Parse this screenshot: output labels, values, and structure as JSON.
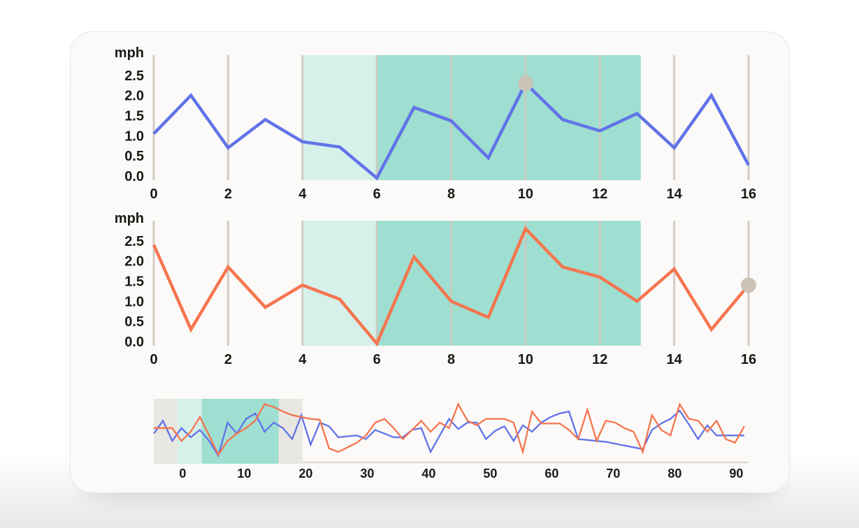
{
  "unit_label": "mph",
  "colors": {
    "series_blue": "#6173e8",
    "series_orange": "#f5754f",
    "highlight_light": "#d6f0ea",
    "highlight_dark": "#9edfd1",
    "brush_backdrop": "#e9e7e1",
    "gridline": "#cfc9be",
    "axis_line": "#dfdad2",
    "marker": "#cbc4b6",
    "text": "#1a1916",
    "card_background": "#fbfaf8"
  },
  "chart_data": [
    {
      "id": "speed-chart-1",
      "type": "line",
      "title": "",
      "ylabel": "mph",
      "xlim": [
        0,
        16
      ],
      "ylim": [
        -0.1,
        3.0
      ],
      "grid": "vertical",
      "legend_position": "none",
      "xticks": [
        0,
        2,
        4,
        6,
        8,
        10,
        12,
        14,
        16
      ],
      "yticks": [
        0,
        0.5,
        1,
        1.5,
        2,
        2.5
      ],
      "series": [
        {
          "name": "speed-blue",
          "color": "#6173e8",
          "x": {
            "start": 0,
            "step": 1
          },
          "values": [
            1.05,
            2.0,
            0.7,
            1.4,
            0.85,
            0.72,
            -0.05,
            1.7,
            1.37,
            0.45,
            2.3,
            1.4,
            1.12,
            1.55,
            0.7,
            2.0,
            0.27
          ]
        }
      ],
      "highlights": [
        {
          "name": "selection-light",
          "from": 4,
          "to": 6,
          "color": "#d6f0ea"
        },
        {
          "name": "selection-dark",
          "from": 6,
          "to": 13.1,
          "color": "#9edfd1"
        }
      ],
      "marker": {
        "x": 10,
        "y": 2.3,
        "color": "#cbc4b6"
      }
    },
    {
      "id": "speed-chart-2",
      "type": "line",
      "title": "",
      "ylabel": "mph",
      "xlim": [
        0,
        16
      ],
      "ylim": [
        -0.1,
        3.0
      ],
      "grid": "vertical",
      "legend_position": "none",
      "xticks": [
        0,
        2,
        4,
        6,
        8,
        10,
        12,
        14,
        16
      ],
      "yticks": [
        0,
        0.5,
        1,
        1.5,
        2,
        2.5
      ],
      "series": [
        {
          "name": "speed-orange",
          "color": "#f5754f",
          "x": {
            "start": 0,
            "step": 1
          },
          "values": [
            2.4,
            0.3,
            1.85,
            0.85,
            1.4,
            1.05,
            -0.05,
            2.1,
            1.0,
            0.6,
            2.8,
            1.85,
            1.6,
            1.0,
            1.8,
            0.3,
            1.4
          ]
        }
      ],
      "highlights": [
        {
          "name": "selection-light",
          "from": 4,
          "to": 6,
          "color": "#d6f0ea"
        },
        {
          "name": "selection-dark",
          "from": 6,
          "to": 13.1,
          "color": "#9edfd1"
        }
      ],
      "marker": {
        "x": 16,
        "y": 1.4,
        "color": "#cbc4b6"
      }
    },
    {
      "id": "overview-chart",
      "type": "line",
      "title": "",
      "ylabel": "",
      "xlim": [
        -4.7,
        92
      ],
      "ylim": [
        0,
        3.2
      ],
      "grid": "none",
      "legend_position": "none",
      "xticks": [
        0,
        10,
        20,
        30,
        40,
        50,
        60,
        70,
        80,
        90
      ],
      "yticks": [],
      "series": [
        {
          "name": "speed-blue-overview",
          "color": "#6173e8",
          "x": {
            "start": -4.7,
            "step": 1.5
          },
          "values": [
            1.3,
            2.0,
            0.9,
            1.6,
            1.1,
            1.5,
            0.9,
            0.1,
            1.9,
            1.3,
            2.1,
            2.4,
            1.4,
            1.9,
            1.6,
            1.0,
            2.3,
            0.7,
            1.9,
            1.7,
            1.1,
            1.15,
            1.2,
            1.0,
            1.5,
            1.3,
            1.1,
            1.1,
            1.5,
            1.6,
            0.3,
            1.2,
            2.1,
            1.55,
            1.9,
            1.9,
            1.0,
            1.45,
            1.7,
            0.9,
            1.75,
            1.4,
            1.9,
            2.2,
            2.4,
            2.5,
            1.0,
            0.95,
            0.9,
            0.85,
            0.75,
            0.65,
            0.55,
            0.45,
            1.5,
            1.85,
            2.1,
            2.55,
            1.8,
            1.0,
            1.75,
            1.2,
            1.2,
            1.2,
            1.2
          ]
        },
        {
          "name": "speed-orange-overview",
          "color": "#f5754f",
          "x": {
            "start": -4.7,
            "step": 1.5
          },
          "values": [
            1.6,
            1.6,
            1.6,
            0.9,
            1.4,
            2.2,
            1.2,
            0.15,
            0.9,
            1.3,
            1.6,
            2.0,
            2.9,
            2.75,
            2.5,
            2.3,
            2.2,
            2.1,
            2.05,
            0.5,
            0.3,
            0.55,
            0.8,
            1.2,
            1.9,
            2.1,
            1.6,
            1.0,
            1.5,
            2.0,
            1.4,
            1.9,
            1.6,
            2.9,
            2.0,
            1.75,
            2.1,
            2.1,
            2.1,
            1.9,
            0.3,
            2.5,
            1.85,
            1.85,
            1.85,
            1.5,
            1.0,
            2.6,
            0.9,
            2.0,
            1.9,
            1.6,
            1.4,
            0.3,
            2.3,
            1.5,
            1.2,
            2.9,
            2.1,
            2.0,
            1.4,
            2.0,
            1.0,
            0.8,
            1.7
          ]
        }
      ],
      "brush": {
        "backdrop": {
          "from": -4.7,
          "to": 19.5,
          "color": "#e9e7e1"
        },
        "selection_light": {
          "from": -0.8,
          "to": 3.1,
          "color": "#d6f0ea"
        },
        "selection_dark": {
          "from": 3.1,
          "to": 15.6,
          "color": "#9edfd1"
        }
      }
    }
  ]
}
